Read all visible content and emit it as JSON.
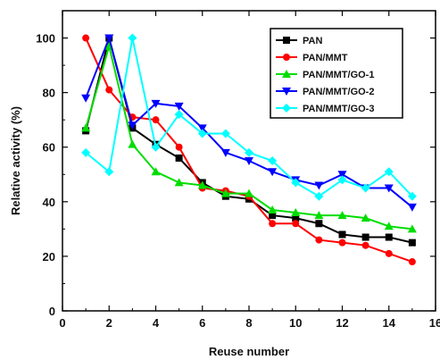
{
  "chart_data": {
    "type": "line",
    "xlabel": "Reuse number",
    "ylabel": "Relative activity (%)",
    "xlim": [
      0,
      16
    ],
    "ylim": [
      0,
      110
    ],
    "xticks": [
      0,
      2,
      4,
      6,
      8,
      10,
      12,
      14,
      16
    ],
    "yticks": [
      0,
      20,
      40,
      60,
      80,
      100
    ],
    "grid": false,
    "legend_position": "top-right",
    "x": [
      1,
      2,
      3,
      4,
      5,
      6,
      7,
      8,
      9,
      10,
      11,
      12,
      13,
      14,
      15
    ],
    "series": [
      {
        "name": "PAN",
        "color": "#000000",
        "marker": "square",
        "values": [
          66,
          100,
          67,
          61,
          56,
          47,
          42,
          41,
          35,
          34,
          32,
          28,
          27,
          27,
          25
        ]
      },
      {
        "name": "PAN/MMT",
        "color": "#ff0000",
        "marker": "circle",
        "values": [
          100,
          81,
          71,
          70,
          60,
          45,
          44,
          42,
          32,
          32,
          26,
          25,
          24,
          21,
          18
        ]
      },
      {
        "name": "PAN/MMT/GO-1",
        "color": "#00dd00",
        "marker": "triangle-up",
        "values": [
          67,
          97,
          61,
          51,
          47,
          46,
          43,
          43,
          37,
          36,
          35,
          35,
          34,
          31,
          30
        ]
      },
      {
        "name": "PAN/MMT/GO-2",
        "color": "#0000ff",
        "marker": "triangle-down",
        "values": [
          78,
          100,
          68,
          76,
          75,
          67,
          58,
          55,
          51,
          48,
          46,
          50,
          45,
          45,
          38
        ]
      },
      {
        "name": "PAN/MMT/GO-3",
        "color": "#00ffff",
        "marker": "diamond",
        "values": [
          58,
          51,
          100,
          60,
          72,
          65,
          65,
          58,
          55,
          47,
          42,
          48,
          45,
          51,
          42
        ]
      }
    ]
  }
}
